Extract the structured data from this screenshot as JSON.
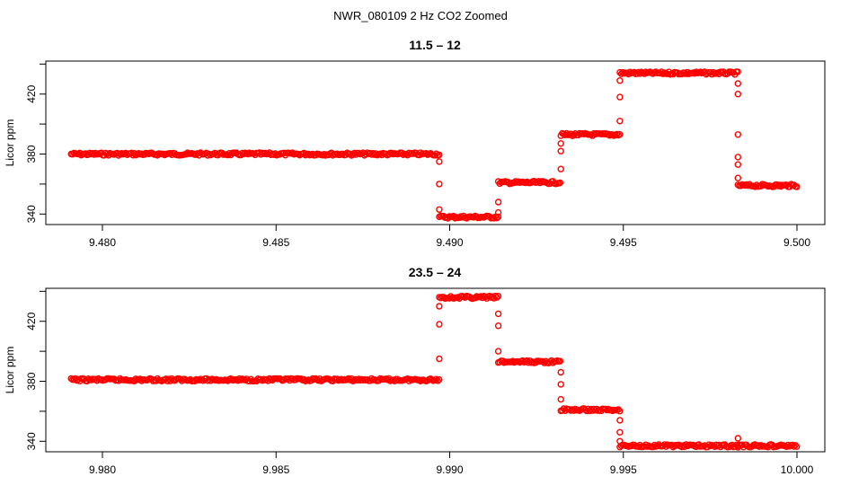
{
  "figure": {
    "title": "NWR_080109  2 Hz CO2 Zoomed",
    "point_color": "#ff0000"
  },
  "chart_data": [
    {
      "type": "scatter",
      "title": "11.5 – 12",
      "xlabel": "",
      "ylabel": "Licor ppm",
      "xlim": [
        9.4791,
        9.5
      ],
      "ylim": [
        333,
        442
      ],
      "x_ticks": [
        9.48,
        9.485,
        9.49,
        9.495,
        9.5
      ],
      "x_tick_labels": [
        "9.480",
        "9.485",
        "9.490",
        "9.495",
        "9.500"
      ],
      "y_ticks": [
        340,
        360,
        380,
        400,
        420,
        440
      ],
      "y_tick_labels": [
        "340",
        "",
        "380",
        "",
        "420",
        ""
      ],
      "grid": false,
      "marker": "open-circle",
      "series": [
        {
          "color": "#ff0000",
          "segments": [
            {
              "x": [
                9.4791,
                9.4897
              ],
              "y": 380
            },
            {
              "x": [
                9.4897,
                9.4914
              ],
              "y": 338
            },
            {
              "x": [
                9.4914,
                9.4932
              ],
              "y": 361
            },
            {
              "x": [
                9.4932,
                9.4949
              ],
              "y": 393
            },
            {
              "x": [
                9.4949,
                9.4983
              ],
              "y": 434
            },
            {
              "x": [
                9.4983,
                9.5
              ],
              "y": 359
            }
          ],
          "transitions": [
            {
              "x": 9.4897,
              "y": [
                375,
                360,
                343
              ]
            },
            {
              "x": 9.4914,
              "y": [
                341,
                348
              ]
            },
            {
              "x": 9.4932,
              "y": [
                370,
                382,
                387
              ]
            },
            {
              "x": 9.4949,
              "y": [
                402,
                418,
                429
              ]
            },
            {
              "x": 9.4983,
              "y": [
                427,
                420,
                393,
                378,
                373,
                364
              ]
            }
          ]
        }
      ]
    },
    {
      "type": "scatter",
      "title": "23.5 – 24",
      "xlabel": "",
      "ylabel": "Licor ppm",
      "xlim": [
        9.9791,
        10.0
      ],
      "ylim": [
        333,
        442
      ],
      "x_ticks": [
        9.98,
        9.985,
        9.99,
        9.995,
        10.0
      ],
      "x_tick_labels": [
        "9.980",
        "9.985",
        "9.990",
        "9.995",
        "10.000"
      ],
      "y_ticks": [
        340,
        360,
        380,
        400,
        420,
        440
      ],
      "y_tick_labels": [
        "340",
        "",
        "380",
        "",
        "420",
        ""
      ],
      "grid": false,
      "marker": "open-circle",
      "series": [
        {
          "color": "#ff0000",
          "segments": [
            {
              "x": [
                9.9791,
                9.9897
              ],
              "y": 381
            },
            {
              "x": [
                9.9897,
                9.9914
              ],
              "y": 436
            },
            {
              "x": [
                9.9914,
                9.9932
              ],
              "y": 393
            },
            {
              "x": [
                9.9932,
                9.9949
              ],
              "y": 361
            },
            {
              "x": [
                9.9949,
                10.0
              ],
              "y": 337
            }
          ],
          "transitions": [
            {
              "x": 9.9897,
              "y": [
                395,
                418,
                430
              ]
            },
            {
              "x": 9.9914,
              "y": [
                425,
                417,
                400
              ]
            },
            {
              "x": 9.9932,
              "y": [
                386,
                378,
                368
              ]
            },
            {
              "x": 9.9949,
              "y": [
                354,
                346,
                340
              ]
            },
            {
              "x": 9.9983,
              "y": [
                342,
                336
              ]
            }
          ]
        }
      ]
    }
  ]
}
